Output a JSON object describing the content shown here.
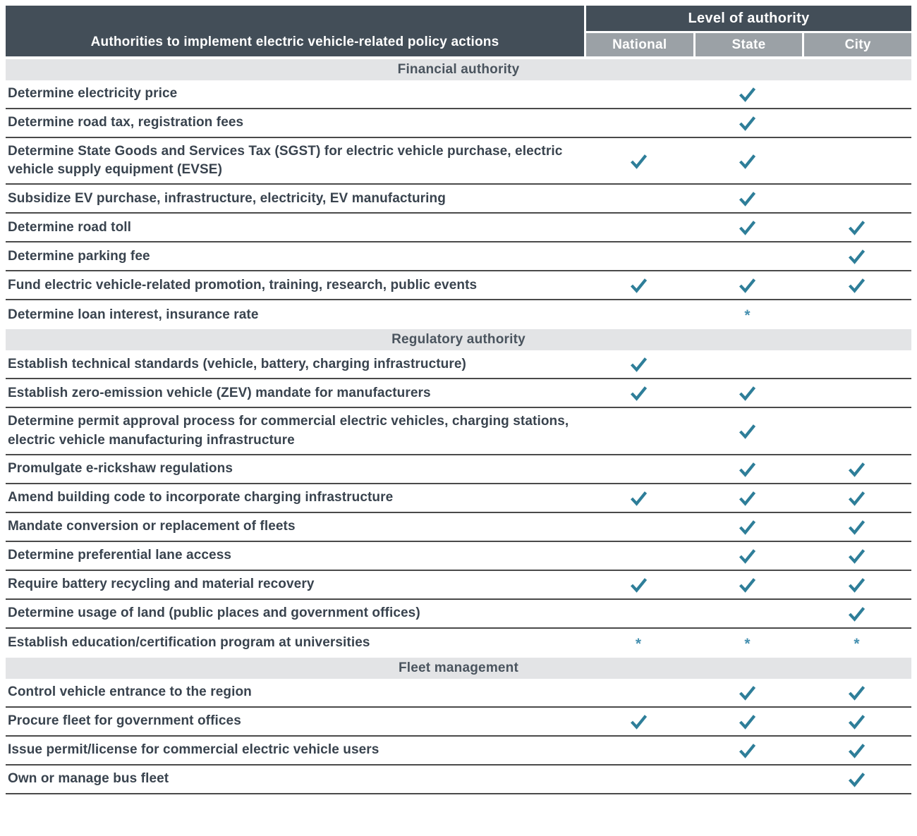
{
  "header": {
    "row_header": "Authorities to implement electric vehicle-related policy actions",
    "group_header": "Level of authority",
    "columns": [
      "National",
      "State",
      "City"
    ]
  },
  "marks": {
    "check": "✓",
    "asterisk": "*"
  },
  "colors": {
    "header_bg": "#434E58",
    "subheader_bg": "#9BA1A6",
    "section_bg": "#E3E4E6",
    "section_text": "#4A545E",
    "check": "#2E7E99",
    "asterisk": "#4690B0",
    "row_text": "#39434E",
    "divider": "#4A4A4A"
  },
  "columns_key": [
    "national",
    "state",
    "city"
  ],
  "sections": [
    {
      "title": "Financial authority",
      "rows": [
        {
          "label": "Determine electricity price",
          "marks": [
            "",
            "check",
            ""
          ]
        },
        {
          "label": "Determine road tax, registration fees",
          "marks": [
            "",
            "check",
            ""
          ]
        },
        {
          "label": "Determine State Goods and Services Tax (SGST) for electric vehicle purchase, electric vehicle supply equipment (EVSE)",
          "marks": [
            "check",
            "check",
            ""
          ]
        },
        {
          "label": "Subsidize EV purchase, infrastructure, electricity, EV manufacturing",
          "marks": [
            "",
            "check",
            ""
          ]
        },
        {
          "label": "Determine road toll",
          "marks": [
            "",
            "check",
            "check"
          ]
        },
        {
          "label": "Determine parking fee",
          "marks": [
            "",
            "",
            "check"
          ]
        },
        {
          "label": "Fund electric vehicle-related promotion, training, research, public events",
          "marks": [
            "check",
            "check",
            "check"
          ]
        },
        {
          "label": "Determine loan interest, insurance rate",
          "marks": [
            "",
            "asterisk",
            ""
          ]
        }
      ]
    },
    {
      "title": "Regulatory authority",
      "rows": [
        {
          "label": "Establish technical standards (vehicle, battery, charging infrastructure)",
          "marks": [
            "check",
            "",
            ""
          ]
        },
        {
          "label": "Establish zero-emission vehicle (ZEV) mandate for manufacturers",
          "marks": [
            "check",
            "check",
            ""
          ]
        },
        {
          "label": "Determine permit approval process for commercial electric vehicles, charging stations, electric vehicle manufacturing infrastructure",
          "marks": [
            "",
            "check",
            ""
          ]
        },
        {
          "label": "Promulgate e-rickshaw regulations",
          "marks": [
            "",
            "check",
            "check"
          ]
        },
        {
          "label": "Amend building code to incorporate charging infrastructure",
          "marks": [
            "check",
            "check",
            "check"
          ]
        },
        {
          "label": "Mandate conversion or replacement of fleets",
          "marks": [
            "",
            "check",
            "check"
          ]
        },
        {
          "label": "Determine preferential lane access",
          "marks": [
            "",
            "check",
            "check"
          ]
        },
        {
          "label": "Require battery recycling and material recovery",
          "marks": [
            "check",
            "check",
            "check"
          ]
        },
        {
          "label": "Determine usage of land (public places and government offices)",
          "marks": [
            "",
            "",
            "check"
          ]
        },
        {
          "label": "Establish education/certification program at universities",
          "marks": [
            "asterisk",
            "asterisk",
            "asterisk"
          ]
        }
      ]
    },
    {
      "title": "Fleet management",
      "rows": [
        {
          "label": "Control vehicle entrance to the region",
          "marks": [
            "",
            "check",
            "check"
          ]
        },
        {
          "label": "Procure fleet for government offices",
          "marks": [
            "check",
            "check",
            "check"
          ]
        },
        {
          "label": "Issue permit/license for commercial electric vehicle users",
          "marks": [
            "",
            "check",
            "check"
          ]
        },
        {
          "label": "Own or manage bus fleet",
          "marks": [
            "",
            "",
            "check"
          ]
        }
      ]
    }
  ]
}
